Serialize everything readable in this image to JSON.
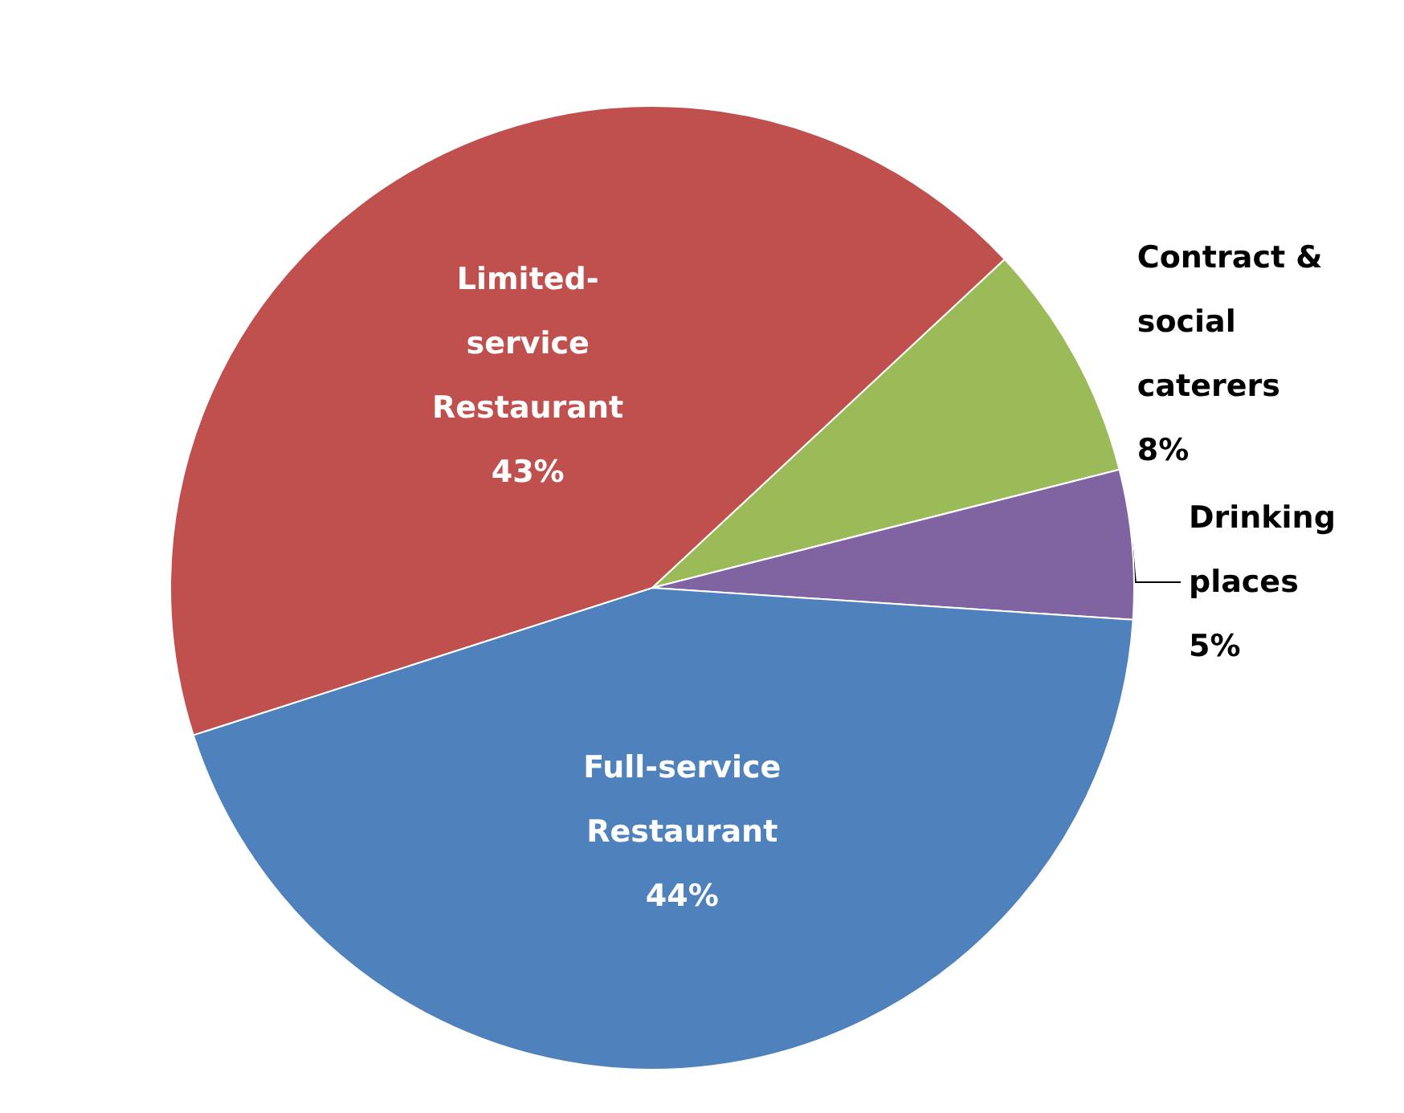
{
  "chart_data": {
    "type": "pie",
    "categories": [
      "Contract & social caterers",
      "Drinking places",
      "Full-service Restaurant",
      "Limited-service Restaurant"
    ],
    "values": [
      8,
      5,
      44,
      43
    ],
    "value_labels": [
      "8%",
      "5%",
      "44%",
      "43%"
    ],
    "colors": [
      "#9bbb59",
      "#8064a2",
      "#4f81bd",
      "#c0504d"
    ],
    "legend": false
  }
}
